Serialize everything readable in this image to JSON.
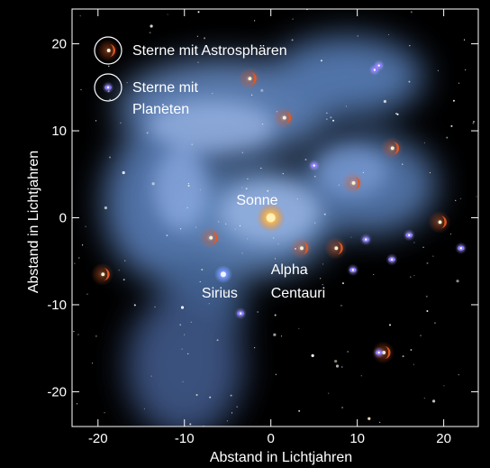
{
  "chart_data": {
    "type": "scatter",
    "xlabel": "Abstand in Lichtjahren",
    "ylabel": "Abstand in Lichtjahren",
    "xlim": [
      -23,
      24
    ],
    "ylim": [
      -24,
      24
    ],
    "x_ticks": [
      -20,
      -10,
      0,
      10,
      20
    ],
    "y_ticks": [
      20,
      10,
      0,
      -10,
      -20
    ],
    "x_tick_labels": [
      "-20",
      "-10",
      "0",
      "10",
      "20"
    ],
    "y_tick_labels": [
      "20",
      "10",
      "0",
      "-10",
      "-20"
    ],
    "legend": [
      {
        "label": "Sterne mit Astrosphären",
        "marker": "astrosphere"
      },
      {
        "label": "Sterne mit\nPlaneten",
        "marker": "planet"
      }
    ],
    "legend_placement": "top-left",
    "background": "#000000",
    "colors": {
      "astrosphere": "#e35a23",
      "planet": "#8c7cff",
      "sun": "#ffbb44",
      "sirius": "#7799ff",
      "nebula": "#7ba8e2",
      "axis": "#ffffff"
    },
    "labels": [
      {
        "text": "Sonne",
        "x": -4,
        "y": 1.5,
        "anchor": "start"
      },
      {
        "text": "Sirius",
        "x": -8,
        "y": -9.2,
        "anchor": "start"
      },
      {
        "text": "Alpha",
        "x": 0,
        "y": -6.5,
        "anchor": "start"
      },
      {
        "text": "Centauri",
        "x": 0,
        "y": -9.2,
        "anchor": "start"
      }
    ],
    "series": [
      {
        "name": "Sterne mit Astrosphären",
        "points": [
          {
            "x": -2.5,
            "y": 16
          },
          {
            "x": 1.5,
            "y": 11.5
          },
          {
            "x": 14,
            "y": 8
          },
          {
            "x": 9.5,
            "y": 4
          },
          {
            "x": 19.5,
            "y": -0.5
          },
          {
            "x": -7,
            "y": -2.3
          },
          {
            "x": 3.5,
            "y": -3.5
          },
          {
            "x": 7.5,
            "y": -3.5
          },
          {
            "x": -19.5,
            "y": -6.5
          },
          {
            "x": 13,
            "y": -15.5
          }
        ]
      },
      {
        "name": "Sterne mit Planeten",
        "points": [
          {
            "x": 12.5,
            "y": 17.5
          },
          {
            "x": 12,
            "y": 17
          },
          {
            "x": 5,
            "y": 6
          },
          {
            "x": 16,
            "y": -2
          },
          {
            "x": 11,
            "y": -2.5
          },
          {
            "x": 22,
            "y": -3.5
          },
          {
            "x": 14,
            "y": -4.8
          },
          {
            "x": 9.5,
            "y": -6
          },
          {
            "x": -3.5,
            "y": -11
          },
          {
            "x": 12.5,
            "y": -15.5
          }
        ]
      },
      {
        "name": "Sonne",
        "points": [
          {
            "x": 0,
            "y": 0
          }
        ]
      },
      {
        "name": "Sirius",
        "points": [
          {
            "x": -5.5,
            "y": -6.5
          }
        ]
      }
    ]
  }
}
